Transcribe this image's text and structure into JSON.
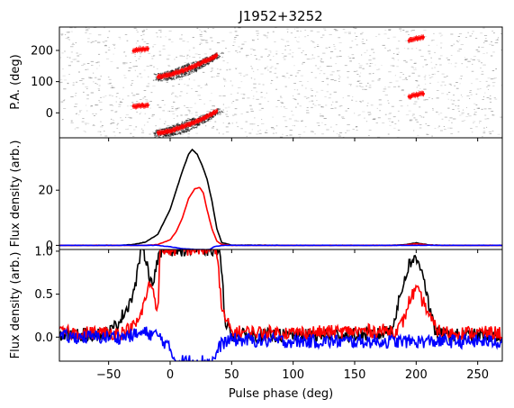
{
  "figure": {
    "title": "J1952+3252"
  },
  "x_axis": {
    "label": "Pulse phase (deg)",
    "range": [
      -90,
      270
    ],
    "ticks": [
      -50,
      0,
      50,
      100,
      150,
      200,
      250
    ]
  },
  "colors": {
    "total": "#000000",
    "linear": "#ff0000",
    "circular": "#0000ff",
    "pa_points": "#ff0000",
    "grey": "#333333"
  },
  "chart_data": [
    {
      "type": "scatter",
      "panel": "position-angle",
      "ylabel": "P.A. (deg)",
      "ylim": [
        -80,
        275
      ],
      "yticks": [
        0,
        100,
        200
      ],
      "background": "grey-scale single-pulse position-angle distribution",
      "pa_tracks": [
        {
          "points": [
            [
              -10,
              115
            ],
            [
              0,
              122
            ],
            [
              10,
              135
            ],
            [
              20,
              150
            ],
            [
              30,
              168
            ],
            [
              38,
              185
            ]
          ]
        },
        {
          "points": [
            [
              -10,
              -65
            ],
            [
              0,
              -58
            ],
            [
              10,
              -45
            ],
            [
              20,
              -30
            ],
            [
              30,
              -12
            ],
            [
              38,
              5
            ]
          ]
        },
        {
          "points": [
            [
              -30,
              200
            ],
            [
              -26,
              202
            ],
            [
              -22,
              203
            ],
            [
              -18,
              205
            ]
          ]
        },
        {
          "points": [
            [
              -30,
              20
            ],
            [
              -26,
              22
            ],
            [
              -22,
              23
            ],
            [
              -18,
              25
            ]
          ]
        },
        {
          "points": [
            [
              194,
              232
            ],
            [
              198,
              236
            ],
            [
              202,
              240
            ],
            [
              206,
              242
            ]
          ]
        },
        {
          "points": [
            [
              194,
              52
            ],
            [
              198,
              56
            ],
            [
              202,
              60
            ],
            [
              206,
              62
            ]
          ]
        }
      ]
    },
    {
      "type": "line",
      "panel": "flux-density",
      "ylabel": "Flux density (arb.)",
      "ylim": [
        -1.5,
        39
      ],
      "yticks": [
        0,
        20
      ],
      "series": [
        {
          "key": "total",
          "x": [
            -90,
            -40,
            -30,
            -20,
            -10,
            0,
            5,
            10,
            15,
            18,
            22,
            26,
            30,
            34,
            38,
            42,
            50,
            100,
            180,
            190,
            200,
            210,
            220,
            270
          ],
          "y": [
            0,
            0,
            0.3,
            1.2,
            4,
            13,
            20,
            27,
            33,
            34.8,
            33,
            29,
            24,
            16,
            6,
            1,
            0.1,
            0,
            0,
            0.2,
            0.9,
            0.2,
            0,
            0
          ]
        },
        {
          "key": "linear",
          "x": [
            -90,
            -20,
            -10,
            0,
            5,
            10,
            15,
            20,
            24,
            27,
            30,
            34,
            38,
            42,
            50,
            180,
            190,
            200,
            210,
            220,
            270
          ],
          "y": [
            0,
            0,
            0.3,
            2,
            5,
            10,
            17,
            20.5,
            21,
            19,
            13,
            6,
            1.5,
            0.3,
            0,
            0,
            0.1,
            0.6,
            0.1,
            0,
            0
          ]
        },
        {
          "key": "circular",
          "x": [
            -90,
            -10,
            0,
            10,
            20,
            28,
            32,
            36,
            42,
            50,
            270
          ],
          "y": [
            0,
            0,
            -0.5,
            -1.2,
            -1.5,
            -1.6,
            -1.5,
            -0.5,
            0,
            0,
            0
          ]
        }
      ]
    },
    {
      "type": "line",
      "panel": "flux-density-zoom",
      "ylabel": "Flux density (arb.)",
      "ylim": [
        -0.28,
        1.02
      ],
      "yticks": [
        0.0,
        0.5,
        1.0
      ],
      "series": [
        {
          "key": "total",
          "x": [
            -90,
            -60,
            -50,
            -45,
            -40,
            -35,
            -30,
            -27,
            -24,
            -20,
            -15,
            -10,
            -5,
            0,
            40,
            45,
            50,
            100,
            170,
            180,
            185,
            190,
            195,
            200,
            205,
            208,
            212,
            215,
            220,
            230,
            270
          ],
          "y": [
            0.02,
            0.03,
            0.05,
            0.12,
            0.22,
            0.35,
            0.5,
            0.7,
            1.02,
            0.95,
            0.6,
            0.9,
            1.02,
            1.02,
            1.02,
            0.2,
            0.02,
            0.02,
            0.03,
            0.1,
            0.35,
            0.65,
            0.88,
            0.9,
            0.8,
            0.55,
            0.25,
            0.08,
            0.03,
            0.02,
            0.02
          ]
        },
        {
          "key": "linear",
          "x": [
            -90,
            -40,
            -35,
            -30,
            -25,
            -20,
            -16,
            -13,
            -10,
            -8,
            38,
            42,
            50,
            100,
            185,
            190,
            195,
            200,
            204,
            208,
            212,
            216,
            220,
            230,
            270
          ],
          "y": [
            0.05,
            0.05,
            0.08,
            0.12,
            0.2,
            0.45,
            0.65,
            0.5,
            0.3,
            1.02,
            1.02,
            0.3,
            0.06,
            0.05,
            0.08,
            0.2,
            0.45,
            0.55,
            0.45,
            0.35,
            0.2,
            0.1,
            0.06,
            0.05,
            0.05
          ]
        },
        {
          "key": "circular",
          "x": [
            -90,
            -40,
            -20,
            -10,
            -5,
            0,
            5,
            10,
            35,
            38,
            42,
            50,
            100,
            150,
            200,
            270
          ],
          "y": [
            0.0,
            0.0,
            0.05,
            0.02,
            -0.05,
            -0.15,
            -0.28,
            -0.28,
            -0.28,
            -0.18,
            -0.07,
            -0.03,
            -0.05,
            -0.05,
            -0.05,
            -0.05
          ]
        }
      ]
    }
  ]
}
